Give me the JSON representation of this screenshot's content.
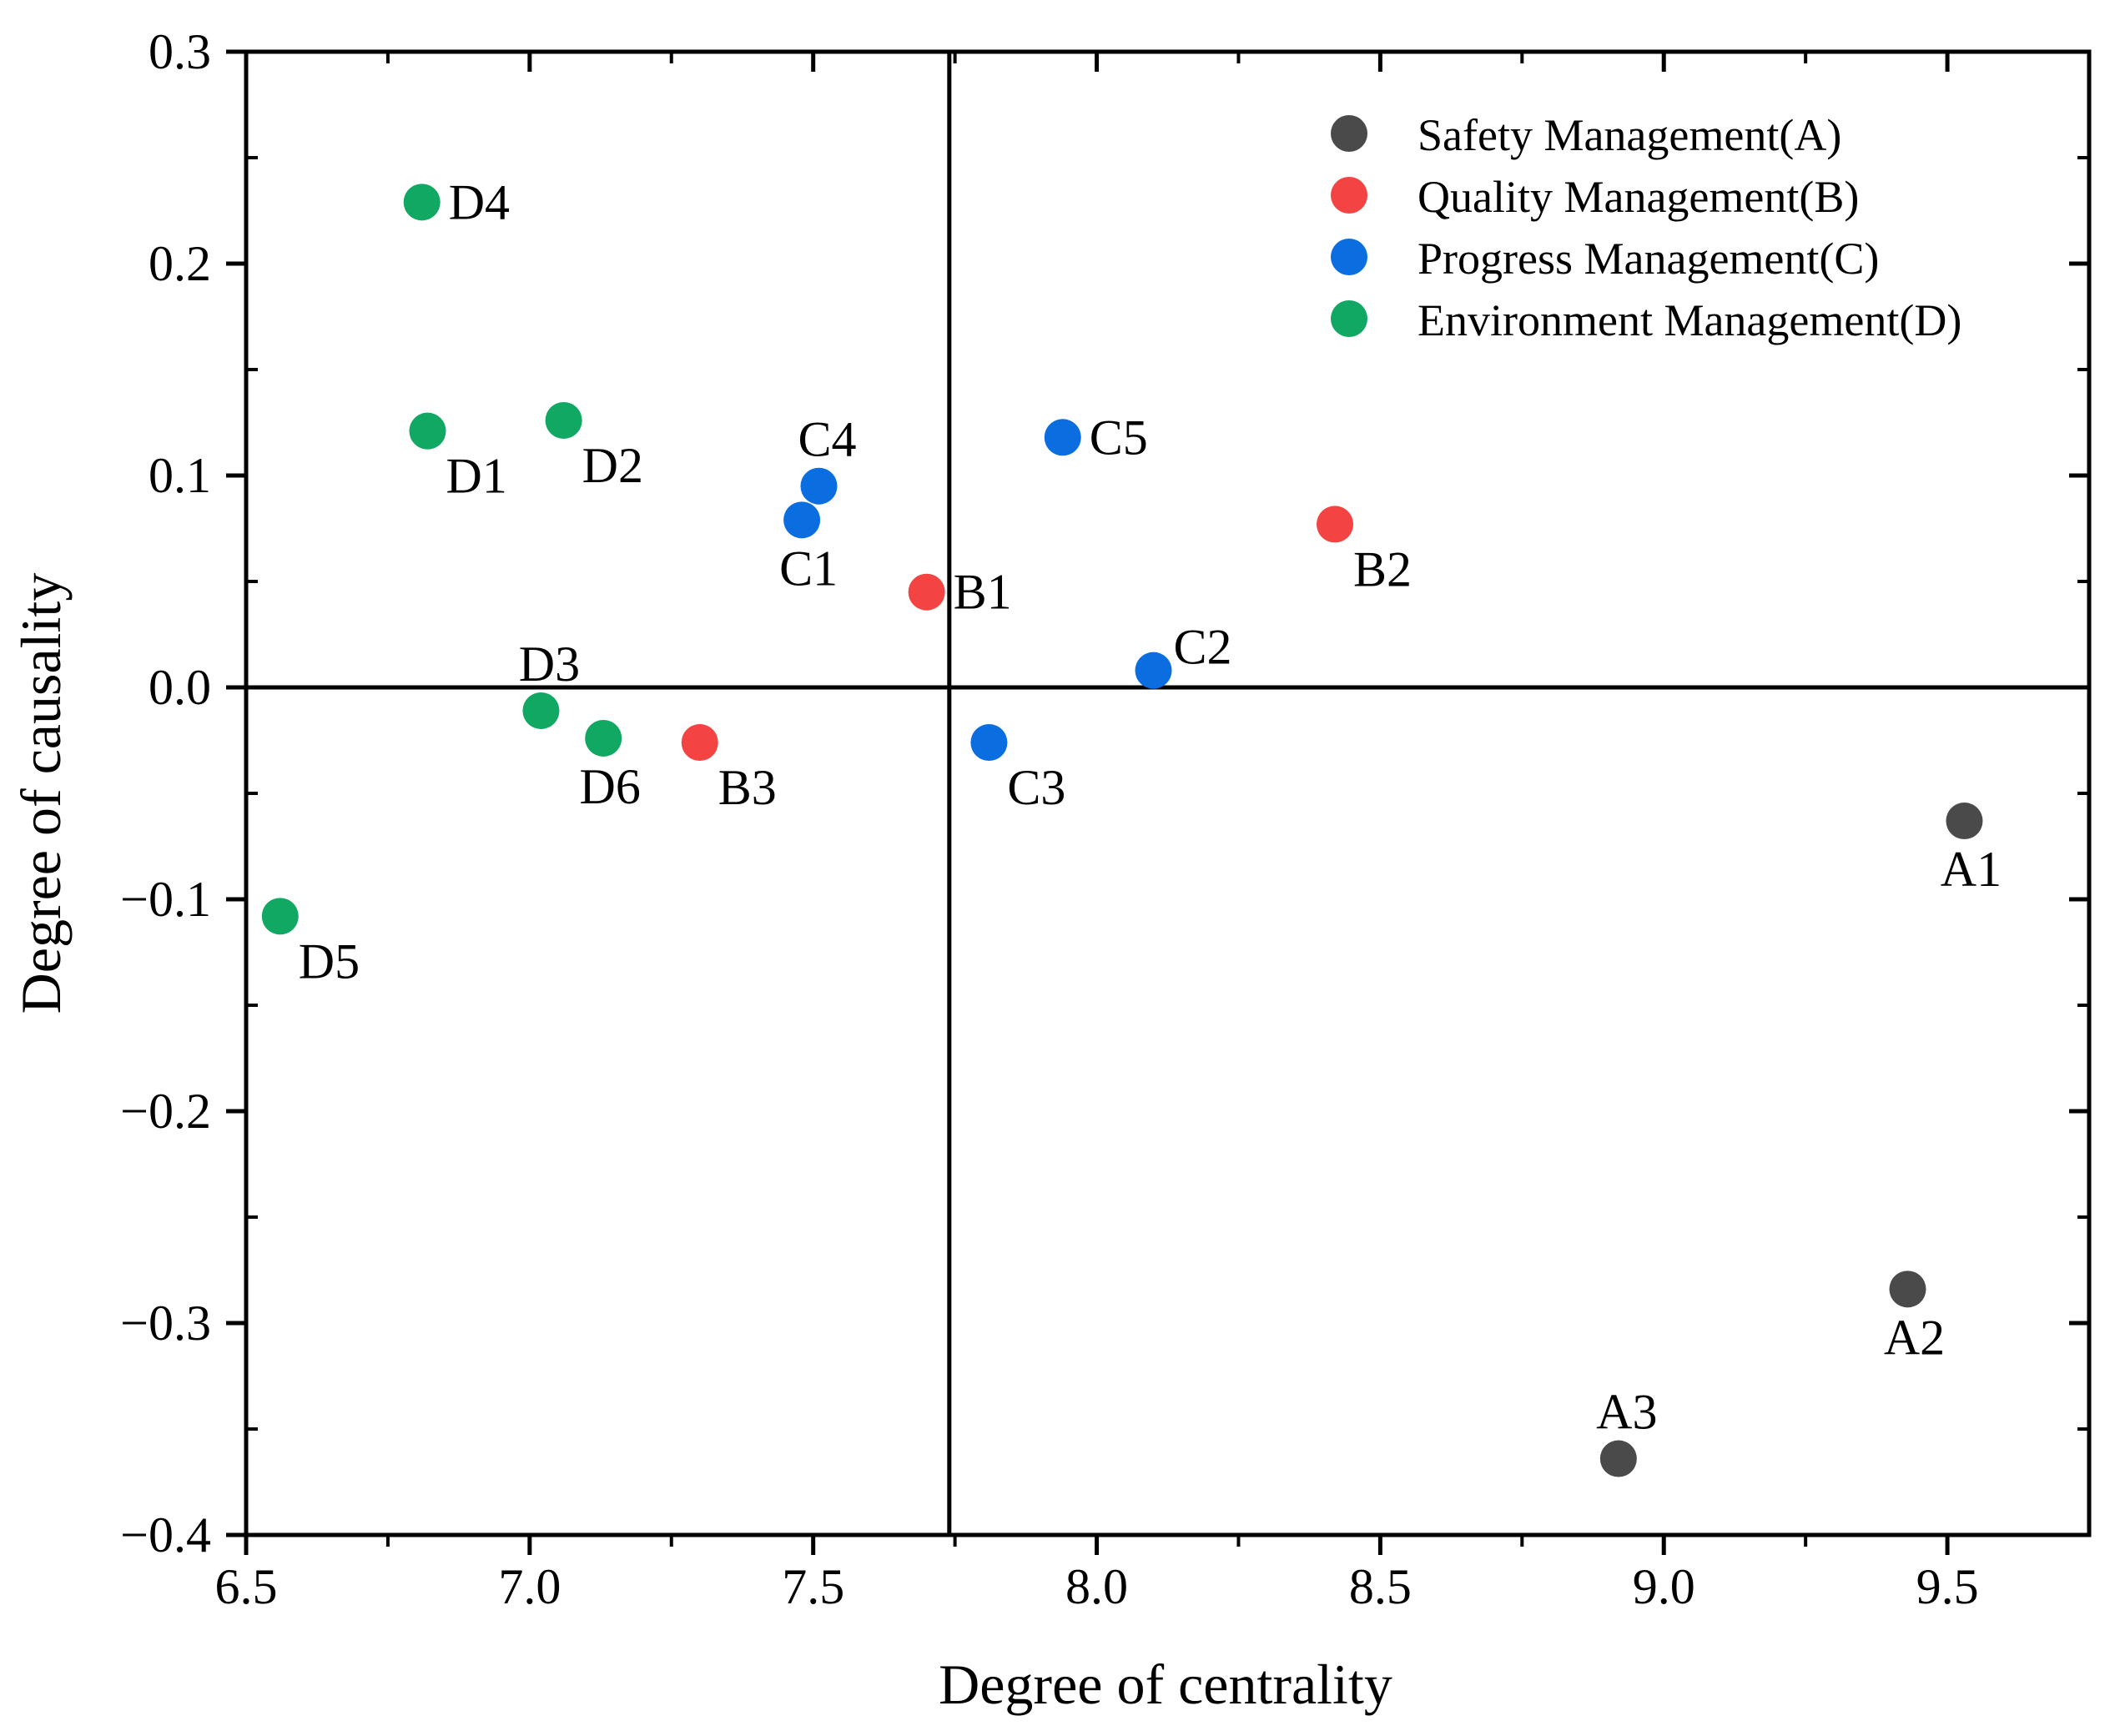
{
  "chart_data": {
    "type": "scatter",
    "title": "",
    "xlabel": "Degree of centrality",
    "ylabel": "Degree of causality",
    "xlim": [
      6.5,
      9.75
    ],
    "ylim": [
      -0.4,
      0.3
    ],
    "xticks": [
      6.5,
      7.0,
      7.5,
      8.0,
      8.5,
      9.0,
      9.5
    ],
    "xtick_labels": [
      "6.5",
      "7.0",
      "7.5",
      "8.0",
      "8.5",
      "9.0",
      "9.5"
    ],
    "yticks": [
      -0.4,
      -0.3,
      -0.2,
      -0.1,
      0.0,
      0.1,
      0.2,
      0.3
    ],
    "ytick_labels": [
      "−0.4",
      "−0.3",
      "−0.2",
      "−0.1",
      "0.0",
      "0.1",
      "0.2",
      "0.3"
    ],
    "quadrant_lines": {
      "x": 7.74,
      "y": 0.0
    },
    "grid": false,
    "legend_position": "top-right",
    "series": [
      {
        "name": "Safety Management(A)",
        "color": "#4a4a4a",
        "points": [
          {
            "label": "A1",
            "x": 9.53,
            "y": -0.063,
            "label_pos": "below"
          },
          {
            "label": "A2",
            "x": 9.43,
            "y": -0.284,
            "label_pos": "below"
          },
          {
            "label": "A3",
            "x": 8.92,
            "y": -0.364,
            "label_pos": "above"
          }
        ]
      },
      {
        "name": "Quality Management(B)",
        "color": "#f44343",
        "points": [
          {
            "label": "B1",
            "x": 7.7,
            "y": 0.045,
            "label_pos": "right"
          },
          {
            "label": "B2",
            "x": 8.42,
            "y": 0.077,
            "label_pos": "below-right"
          },
          {
            "label": "B3",
            "x": 7.3,
            "y": -0.026,
            "label_pos": "below-right"
          }
        ]
      },
      {
        "name": "Progress Management(C)",
        "color": "#0a6ee0",
        "points": [
          {
            "label": "C1",
            "x": 7.48,
            "y": 0.079,
            "label_pos": "below"
          },
          {
            "label": "C2",
            "x": 8.1,
            "y": 0.008,
            "label_pos": "above-right"
          },
          {
            "label": "C3",
            "x": 7.81,
            "y": -0.026,
            "label_pos": "below-right"
          },
          {
            "label": "C4",
            "x": 7.51,
            "y": 0.095,
            "label_pos": "above"
          },
          {
            "label": "C5",
            "x": 7.94,
            "y": 0.118,
            "label_pos": "right"
          }
        ]
      },
      {
        "name": "Environment Management(D)",
        "color": "#10a862",
        "points": [
          {
            "label": "D1",
            "x": 6.82,
            "y": 0.121,
            "label_pos": "below-right"
          },
          {
            "label": "D2",
            "x": 7.06,
            "y": 0.126,
            "label_pos": "below-right"
          },
          {
            "label": "D3",
            "x": 7.02,
            "y": -0.011,
            "label_pos": "above"
          },
          {
            "label": "D4",
            "x": 6.81,
            "y": 0.229,
            "label_pos": "right"
          },
          {
            "label": "D5",
            "x": 6.56,
            "y": -0.108,
            "label_pos": "below-right"
          },
          {
            "label": "D6",
            "x": 7.13,
            "y": -0.024,
            "label_pos": "below"
          }
        ]
      }
    ]
  }
}
